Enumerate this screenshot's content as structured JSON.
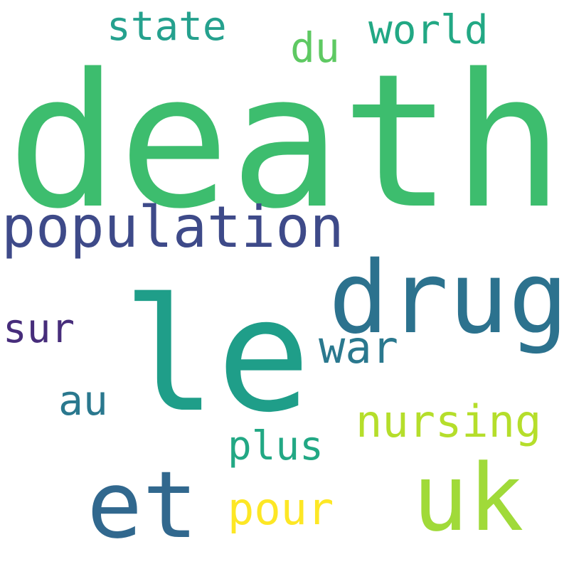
{
  "words": {
    "death": {
      "text": "death",
      "color": "#3dbd6e"
    },
    "le": {
      "text": "le",
      "color": "#1f9e89"
    },
    "drug": {
      "text": "drug",
      "color": "#2c728e"
    },
    "population": {
      "text": "population",
      "color": "#3e4a89"
    },
    "uk": {
      "text": "uk",
      "color": "#a0da39"
    },
    "et": {
      "text": "et",
      "color": "#31688e"
    },
    "nursing": {
      "text": "nursing",
      "color": "#b5de2b"
    },
    "war": {
      "text": "war",
      "color": "#2a788e"
    },
    "pour": {
      "text": "pour",
      "color": "#fde725"
    },
    "plus": {
      "text": "plus",
      "color": "#22a884"
    },
    "au": {
      "text": "au",
      "color": "#2a788e"
    },
    "sur": {
      "text": "sur",
      "color": "#472d7b"
    },
    "state": {
      "text": "state",
      "color": "#25a18e"
    },
    "du": {
      "text": "du",
      "color": "#5ec962"
    },
    "world": {
      "text": "world",
      "color": "#22a884"
    }
  }
}
